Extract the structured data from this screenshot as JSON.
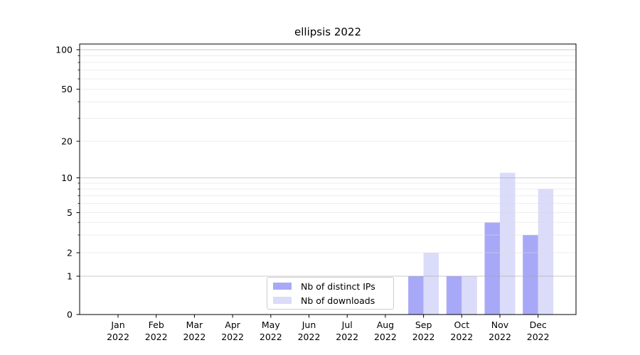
{
  "chart_data": {
    "type": "bar",
    "title": "ellipsis 2022",
    "categories": [
      "Jan",
      "Feb",
      "Mar",
      "Apr",
      "May",
      "Jun",
      "Jul",
      "Aug",
      "Sep",
      "Oct",
      "Nov",
      "Dec"
    ],
    "x_tick_year": "2022",
    "series": [
      {
        "name": "Nb of distinct IPs",
        "color": "#a8a8f8",
        "values": [
          0,
          0,
          0,
          0,
          0,
          0,
          0,
          0,
          1,
          1,
          4,
          3
        ]
      },
      {
        "name": "Nb of downloads",
        "color": "#dbdbfa",
        "values": [
          0,
          0,
          0,
          0,
          0,
          0,
          0,
          0,
          2,
          1,
          11,
          8
        ]
      }
    ],
    "yaxis": {
      "scale": "symlog",
      "range": [
        0,
        100
      ],
      "ticks": [
        0,
        1,
        2,
        5,
        10,
        20,
        50,
        100
      ],
      "minor_ticks": [
        3,
        4,
        6,
        7,
        8,
        9,
        30,
        40,
        60,
        70,
        80,
        90
      ]
    },
    "xlabel": "",
    "ylabel": "",
    "grid": true,
    "legend_position": "lower center",
    "colors": {
      "axis": "#000000",
      "grid_major": "#c8c8c8",
      "grid_minor": "#ededed",
      "tick_label": "#000000"
    }
  }
}
